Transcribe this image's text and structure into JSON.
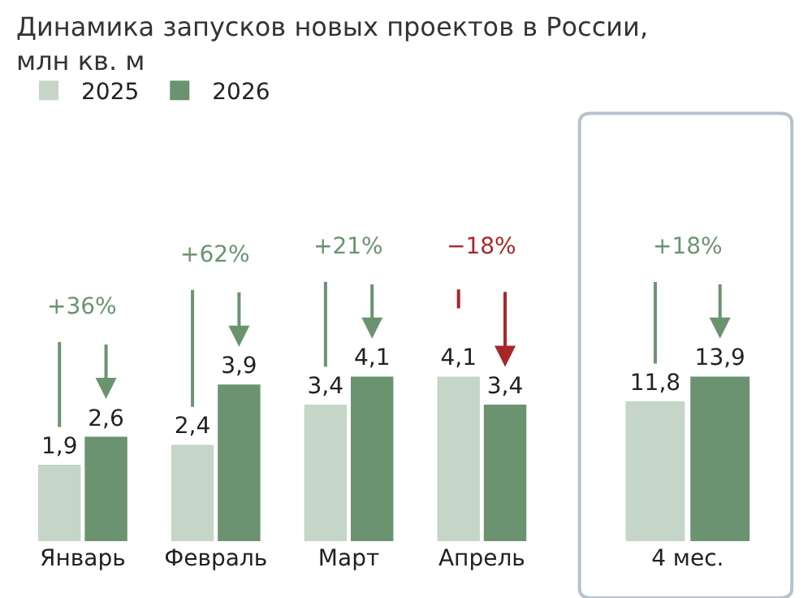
{
  "chart_data": [
    {
      "type": "bar",
      "title": "Динамика запусков новых проектов в России,\nмлн кв. м",
      "categories": [
        "Январь",
        "Февраль",
        "Март",
        "Апрель"
      ],
      "series": [
        {
          "name": "2025",
          "color": "#c5d5c7",
          "values": [
            1.9,
            2.4,
            3.4,
            4.1
          ],
          "value_labels": [
            "1,9",
            "2,4",
            "3,4",
            "4,1"
          ]
        },
        {
          "name": "2026",
          "color": "#6b9370",
          "values": [
            2.6,
            3.9,
            4.1,
            3.4
          ],
          "value_labels": [
            "2,6",
            "3,9",
            "4,1",
            "3,4"
          ]
        }
      ],
      "legend": "top left",
      "annotations": [
        "+36%",
        "+62%",
        "+21%",
        "−18%"
      ]
    },
    {
      "type": "bar",
      "categories": [
        "4 мес."
      ],
      "series": [
        {
          "color": "#c5d5c7",
          "values": [
            11.8
          ],
          "value_labels": [
            "11,8"
          ]
        },
        {
          "color": "#6b9370",
          "values": [
            13.9
          ],
          "value_labels": [
            "13,9"
          ]
        }
      ],
      "annotations": [
        "+18%"
      ]
    }
  ]
}
